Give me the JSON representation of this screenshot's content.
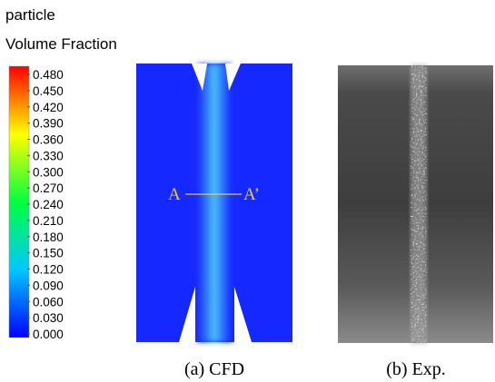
{
  "colorbar": {
    "title": [
      "particle",
      "Volume Fraction"
    ],
    "labels": [
      "0.480",
      "0.450",
      "0.420",
      "0.390",
      "0.360",
      "0.330",
      "0.300",
      "0.270",
      "0.240",
      "0.210",
      "0.180",
      "0.150",
      "0.120",
      "0.090",
      "0.060",
      "0.030",
      "0.000"
    ]
  },
  "panels": [
    {
      "caption": "(a) CFD",
      "section_labels": [
        "A",
        "A’"
      ]
    },
    {
      "caption": "(b) Exp."
    }
  ]
}
